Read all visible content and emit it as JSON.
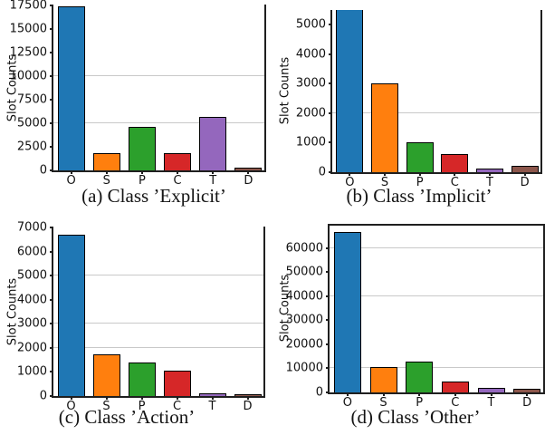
{
  "figure": {
    "background": "#ffffff",
    "bar_edge_color": "#000000",
    "grid_color": "#c9c9c9",
    "spine_color": "#1f1f1f",
    "bar_colors": {
      "O": "#1f77b4",
      "S": "#ff7f0e",
      "P": "#2ca02c",
      "C": "#d62728",
      "T": "#9467bd",
      "D": "#8c564b"
    }
  },
  "chart_data": [
    {
      "type": "bar",
      "caption": "(a) Class ’Explicit’",
      "ylabel": "Slot Counts",
      "xlabel": "",
      "categories": [
        "O",
        "S",
        "P",
        "C",
        "T",
        "D"
      ],
      "values": [
        17400,
        1850,
        4600,
        1800,
        5650,
        300
      ],
      "yticks": [
        0,
        2500,
        5000,
        7500,
        10000,
        12500,
        15000,
        17500
      ],
      "ylim": [
        0,
        17600
      ],
      "gridlines": [
        5000,
        10000
      ],
      "grid": true,
      "top_spine": false,
      "legend": "none"
    },
    {
      "type": "bar",
      "caption": "(b) Class ’Implicit’",
      "ylabel": "Slot Counts",
      "xlabel": "",
      "categories": [
        "O",
        "S",
        "P",
        "C",
        "T",
        "D"
      ],
      "values": [
        5600,
        3000,
        1000,
        620,
        120,
        230
      ],
      "yticks": [
        0,
        1000,
        2000,
        3000,
        4000,
        5000
      ],
      "ylim": [
        0,
        5500
      ],
      "gridlines": [
        2000
      ],
      "grid": true,
      "top_spine": false,
      "legend": "none"
    },
    {
      "type": "bar",
      "caption": "(c) Class ’Action’",
      "ylabel": "Slot Counts",
      "xlabel": "",
      "categories": [
        "O",
        "S",
        "P",
        "C",
        "T",
        "D"
      ],
      "values": [
        6700,
        1750,
        1400,
        1050,
        110,
        70
      ],
      "yticks": [
        0,
        1000,
        2000,
        3000,
        4000,
        5000,
        6000,
        7000
      ],
      "ylim": [
        0,
        7050
      ],
      "gridlines": [
        2000,
        3000,
        5000
      ],
      "grid": true,
      "top_spine": false,
      "legend": "none"
    },
    {
      "type": "bar",
      "caption": "(d) Class ’Other’",
      "ylabel": "Slot Counts",
      "xlabel": "",
      "categories": [
        "O",
        "S",
        "P",
        "C",
        "T",
        "D"
      ],
      "values": [
        66500,
        10500,
        12700,
        4500,
        1700,
        1500
      ],
      "yticks": [
        0,
        10000,
        20000,
        30000,
        40000,
        50000,
        60000
      ],
      "ylim": [
        0,
        70000
      ],
      "gridlines": [
        10000,
        40000,
        60000
      ],
      "grid": true,
      "top_spine": true,
      "legend": "none"
    }
  ]
}
